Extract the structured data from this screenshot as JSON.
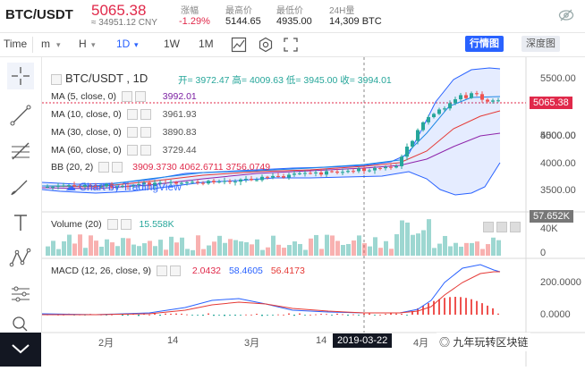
{
  "header": {
    "pair": "BTC/USDT",
    "price": "5065.38",
    "cny": "≈ 34951.12 CNY",
    "change_label": "涨幅",
    "change_value": "-1.29%",
    "high_label": "最高价",
    "high_value": "5144.65",
    "low_label": "最低价",
    "low_value": "4935.00",
    "vol_label": "24H量",
    "vol_value": "14,309 BTC"
  },
  "toolbar": {
    "time_label": "Time",
    "m_label": "m",
    "h_label": "H",
    "d_label": "1D",
    "w_label": "1W",
    "mo_label": "1M",
    "tab_market": "行情图",
    "tab_depth": "深度图"
  },
  "chart": {
    "title": "BTC/USDT , 1D",
    "ohlc": "开= 3972.47  高= 4009.63  低= 3945.00  收= 3994.01",
    "ma5": "MA (5, close, 0)",
    "ma5_val": "3992.01",
    "ma10": "MA (10, close, 0)",
    "ma10_val": "3961.93",
    "ma30": "MA (30, close, 0)",
    "ma30_val": "3890.83",
    "ma60": "MA (60, close, 0)",
    "ma60_val": "3729.44",
    "bb": "BB (20, 2)",
    "bb_vals": "3909.3730  4062.6711  3756.0749",
    "watermark": "Chart by TradingView",
    "volume_label": "Volume (20)",
    "volume_val": "15.558K",
    "macd_label": "MACD (12, 26, close, 9)",
    "macd_v1": "2.0432",
    "macd_v2": "58.4605",
    "macd_v3": "56.4173",
    "price_axis": [
      "5500.00",
      "5000.00",
      "4500.00",
      "4000.00",
      "3500.00"
    ],
    "last_price_tag": "5065.38",
    "volume_axis": [
      "40K",
      "0"
    ],
    "volume_tag": "57.652K",
    "macd_axis": [
      "200.0000",
      "0.0000"
    ],
    "x_labels": [
      "2月",
      "14",
      "3月",
      "14",
      "4月"
    ],
    "crosshair_date": "2019-03-22",
    "footer_brand": "九年玩转区块链"
  },
  "colors": {
    "up": "#26a69a",
    "down": "#ef5350",
    "accent": "#2962ff",
    "price": "#e0294a"
  }
}
